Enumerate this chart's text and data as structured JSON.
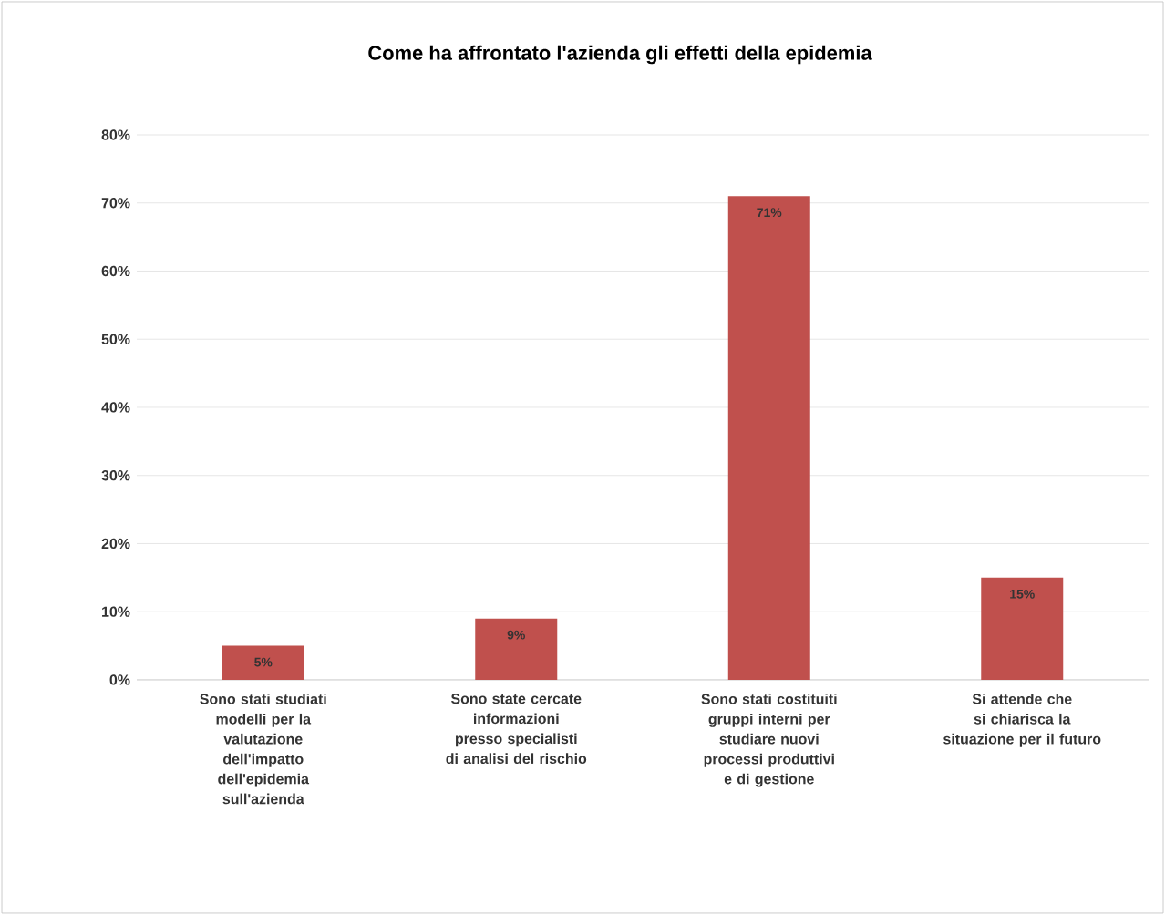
{
  "chart_data": {
    "type": "bar",
    "title": "Come ha affrontato l'azienda gli effetti della epidemia",
    "categories": [
      "Sono stati studiati modelli per la valutazione dell'impatto dell'epidemia sull'azienda",
      "Sono state cercate informazioni presso specialisti di analisi del rischio",
      "Sono stati costituiti gruppi interni per studiare nuovi processi produttivi e di gestione",
      "Si attende che si chiarisca la situazione per il futuro"
    ],
    "values": [
      5,
      9,
      71,
      15
    ],
    "value_labels": [
      "5%",
      "9%",
      "71%",
      "15%"
    ],
    "color": "#c0504d",
    "ylim": [
      0,
      80
    ],
    "yticks": [
      {
        "value": 0,
        "label": "0%"
      },
      {
        "value": 10,
        "label": "10%"
      },
      {
        "value": 20,
        "label": "20%"
      },
      {
        "value": 30,
        "label": "30%"
      },
      {
        "value": 40,
        "label": "40%"
      },
      {
        "value": 50,
        "label": "50%"
      },
      {
        "value": 60,
        "label": "60%"
      },
      {
        "value": 70,
        "label": "70%"
      },
      {
        "value": 80,
        "label": "80%"
      }
    ],
    "grid": "y"
  }
}
